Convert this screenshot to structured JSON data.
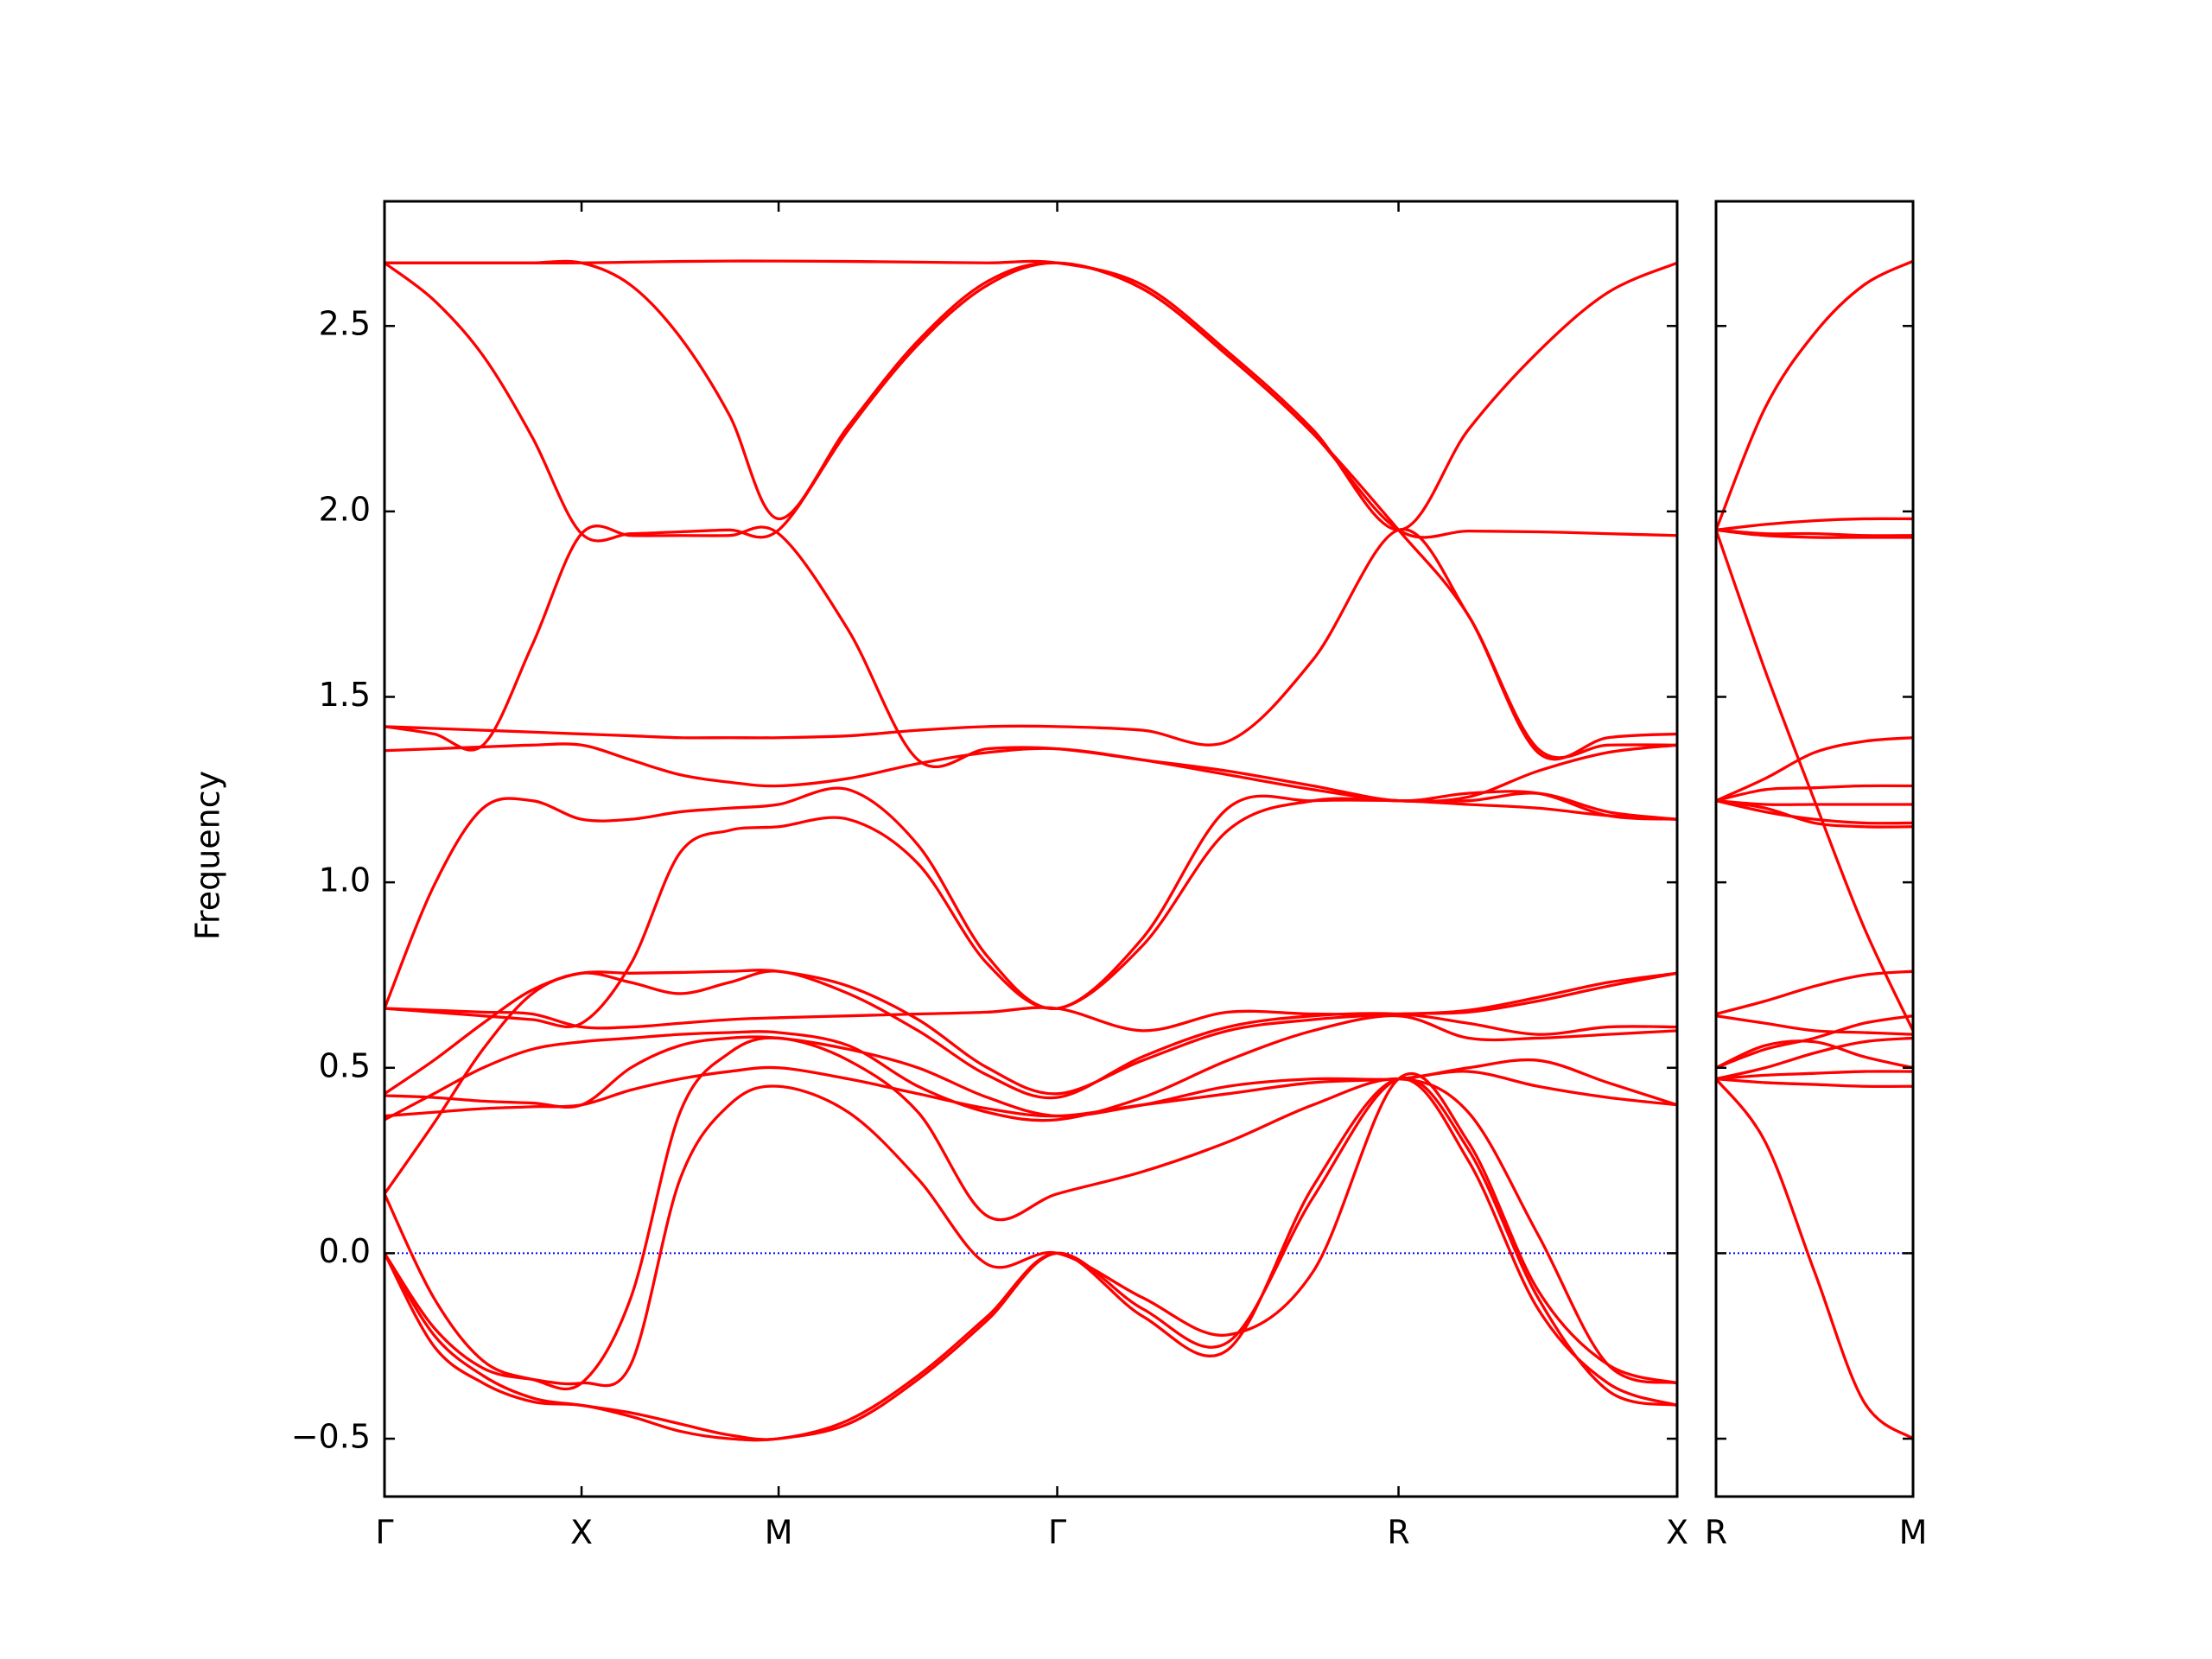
{
  "chart_data": [
    {
      "type": "line",
      "ylabel": "Frequency",
      "color": "red",
      "x": [
        0,
        0.125,
        0.25,
        0.375,
        0.5,
        0.625,
        0.75,
        0.875,
        1.0,
        1.177,
        1.354,
        1.53,
        1.707,
        1.924,
        2.14,
        2.356,
        2.573,
        2.75,
        2.927,
        3.104,
        3.28
      ],
      "xlim": [
        0,
        3.28
      ],
      "xticks": [
        {
          "value": 0,
          "label": "Γ"
        },
        {
          "value": 0.5,
          "label": "X"
        },
        {
          "value": 1.0,
          "label": "M"
        },
        {
          "value": 1.707,
          "label": "Γ"
        },
        {
          "value": 2.573,
          "label": "R"
        },
        {
          "value": 3.28,
          "label": "X"
        }
      ],
      "ylim": [
        -0.656,
        2.836
      ],
      "yticks": [
        {
          "value": -0.5,
          "label": "−0.5"
        },
        {
          "value": 0,
          "label": "0.0"
        },
        0.5,
        {
          "value": 1,
          "label": "1.0"
        },
        1.5,
        {
          "value": 2,
          "label": "2.0"
        },
        2.5
      ],
      "reference_line": {
        "y": 0,
        "color": "blue",
        "style": "dotted"
      },
      "series": [
        {
          "values": [
            2.67,
            2.67,
            2.67,
            2.67,
            2.67,
            2.672,
            2.674,
            2.675,
            2.675,
            2.674,
            2.672,
            2.67,
            2.67,
            2.61,
            2.43,
            2.22,
            1.95,
            2.22,
            2.43,
            2.59,
            2.67
          ]
        },
        {
          "values": [
            2.67,
            2.57,
            2.42,
            2.2,
            1.94,
            1.94,
            1.945,
            1.95,
            1.95,
            2.22,
            2.45,
            2.61,
            2.67,
            2.6,
            2.42,
            2.21,
            1.95,
            1.947,
            1.945,
            1.94,
            1.935
          ]
        },
        {
          "values": [
            2.67,
            2.67,
            2.67,
            2.67,
            2.67,
            2.61,
            2.47,
            2.26,
            1.98,
            2.23,
            2.46,
            2.62,
            2.67,
            2.6,
            2.42,
            2.21,
            1.95,
            1.72,
            1.35,
            1.39,
            1.4
          ]
        },
        {
          "values": [
            1.42,
            1.4,
            1.37,
            1.64,
            1.94,
            1.935,
            1.935,
            1.935,
            1.94,
            1.68,
            1.33,
            1.36,
            1.36,
            1.33,
            1.3,
            1.26,
            1.22,
            1.24,
            1.24,
            1.18,
            1.17
          ]
        },
        {
          "values": [
            1.42,
            1.415,
            1.41,
            1.405,
            1.4,
            1.395,
            1.39,
            1.39,
            1.39,
            1.395,
            1.41,
            1.42,
            1.42,
            1.41,
            1.38,
            1.6,
            1.95,
            1.72,
            1.36,
            1.37,
            1.37
          ]
        },
        {
          "values": [
            1.355,
            1.36,
            1.365,
            1.37,
            1.37,
            1.33,
            1.29,
            1.27,
            1.26,
            1.28,
            1.32,
            1.35,
            1.36,
            1.33,
            1.29,
            1.25,
            1.22,
            1.23,
            1.3,
            1.35,
            1.37
          ]
        },
        {
          "values": [
            0.66,
            0.99,
            1.2,
            1.22,
            1.17,
            1.17,
            1.19,
            1.2,
            1.21,
            1.25,
            1.1,
            0.8,
            0.66,
            0.85,
            1.2,
            1.22,
            1.22,
            1.21,
            1.2,
            1.18,
            1.17
          ]
        },
        {
          "values": [
            0.66,
            0.65,
            0.64,
            0.63,
            0.62,
            0.78,
            1.08,
            1.14,
            1.15,
            1.17,
            1.05,
            0.78,
            0.66,
            0.83,
            1.14,
            1.22,
            1.22,
            1.22,
            1.24,
            1.19,
            1.17
          ]
        },
        {
          "values": [
            0.43,
            0.52,
            0.62,
            0.71,
            0.755,
            0.755,
            0.757,
            0.76,
            0.76,
            0.72,
            0.63,
            0.5,
            0.43,
            0.52,
            0.6,
            0.63,
            0.645,
            0.65,
            0.68,
            0.72,
            0.755
          ]
        },
        {
          "values": [
            0.16,
            0.35,
            0.55,
            0.7,
            0.755,
            0.73,
            0.7,
            0.73,
            0.76,
            0.7,
            0.6,
            0.48,
            0.42,
            0.53,
            0.61,
            0.64,
            0.645,
            0.62,
            0.59,
            0.61,
            0.61
          ]
        },
        {
          "values": [
            0.37,
            0.38,
            0.39,
            0.395,
            0.4,
            0.44,
            0.47,
            0.49,
            0.5,
            0.47,
            0.43,
            0.39,
            0.37,
            0.4,
            0.43,
            0.46,
            0.47,
            0.49,
            0.45,
            0.42,
            0.4
          ]
        },
        {
          "values": [
            0.425,
            0.42,
            0.41,
            0.405,
            0.4,
            0.5,
            0.56,
            0.58,
            0.58,
            0.55,
            0.5,
            0.42,
            0.37,
            0.4,
            0.45,
            0.47,
            0.47,
            0.5,
            0.52,
            0.46,
            0.4
          ]
        },
        {
          "values": [
            0.66,
            0.655,
            0.65,
            0.645,
            0.61,
            0.61,
            0.62,
            0.63,
            0.635,
            0.64,
            0.645,
            0.65,
            0.66,
            0.6,
            0.65,
            0.645,
            0.645,
            0.655,
            0.69,
            0.73,
            0.755
          ]
        },
        {
          "values": [
            0.36,
            0.43,
            0.5,
            0.55,
            0.57,
            0.58,
            0.59,
            0.595,
            0.595,
            0.56,
            0.45,
            0.38,
            0.36,
            0.42,
            0.52,
            0.6,
            0.64,
            0.58,
            0.58,
            0.59,
            0.6
          ]
        },
        {
          "values": [
            0.0,
            -0.22,
            -0.33,
            -0.39,
            -0.41,
            -0.43,
            -0.46,
            -0.49,
            -0.5,
            -0.45,
            -0.33,
            -0.17,
            0.0,
            -0.17,
            -0.26,
            0.18,
            0.47,
            0.25,
            -0.15,
            -0.35,
            -0.41
          ]
        },
        {
          "values": [
            0.16,
            -0.12,
            -0.29,
            -0.34,
            -0.35,
            -0.12,
            0.38,
            0.54,
            0.58,
            0.52,
            0.38,
            0.1,
            0.16,
            0.22,
            0.3,
            0.4,
            0.47,
            0.38,
            0.05,
            -0.3,
            -0.35
          ]
        },
        {
          "values": [
            0.0,
            -0.2,
            -0.31,
            -0.34,
            -0.35,
            -0.3,
            0.2,
            0.4,
            0.45,
            0.38,
            0.2,
            -0.03,
            0.0,
            -0.12,
            -0.22,
            -0.05,
            0.47,
            0.3,
            -0.1,
            -0.3,
            -0.35
          ]
        },
        {
          "values": [
            0.0,
            -0.25,
            -0.35,
            -0.4,
            -0.41,
            -0.44,
            -0.48,
            -0.5,
            -0.5,
            -0.46,
            -0.34,
            -0.18,
            0.0,
            -0.15,
            -0.24,
            0.15,
            0.47,
            0.28,
            -0.12,
            -0.37,
            -0.41
          ]
        }
      ]
    },
    {
      "type": "line",
      "color": "red",
      "x": [
        0,
        0.125,
        0.25,
        0.375,
        0.5
      ],
      "xlim": [
        0,
        0.5
      ],
      "xticks": [
        {
          "value": 0,
          "label": "R"
        },
        {
          "value": 0.5,
          "label": "M"
        }
      ],
      "ylim": [
        -0.656,
        2.836
      ],
      "yticks": [
        -0.5,
        0,
        0.5,
        1,
        1.5,
        2,
        2.5
      ],
      "yticklabels": false,
      "reference_line": {
        "y": 0,
        "color": "blue",
        "style": "dotted"
      },
      "series": [
        {
          "values": [
            1.95,
            2.28,
            2.48,
            2.61,
            2.675
          ]
        },
        {
          "values": [
            1.95,
            1.965,
            1.975,
            1.98,
            1.98
          ]
        },
        {
          "values": [
            1.95,
            1.94,
            1.94,
            1.935,
            1.935
          ]
        },
        {
          "values": [
            1.95,
            1.935,
            1.93,
            1.93,
            1.93
          ]
        },
        {
          "values": [
            1.95,
            1.57,
            1.22,
            0.88,
            0.6
          ]
        },
        {
          "values": [
            1.22,
            1.28,
            1.35,
            1.38,
            1.39
          ]
        },
        {
          "values": [
            1.22,
            1.25,
            1.255,
            1.26,
            1.26
          ]
        },
        {
          "values": [
            1.22,
            1.21,
            1.21,
            1.21,
            1.21
          ]
        },
        {
          "values": [
            1.22,
            1.19,
            1.17,
            1.16,
            1.16
          ]
        },
        {
          "values": [
            1.22,
            1.2,
            1.16,
            1.15,
            1.15
          ]
        },
        {
          "values": [
            0.645,
            0.68,
            0.72,
            0.75,
            0.76
          ]
        },
        {
          "values": [
            0.64,
            0.62,
            0.6,
            0.595,
            0.59
          ]
        },
        {
          "values": [
            0.5,
            0.55,
            0.58,
            0.62,
            0.64
          ]
        },
        {
          "values": [
            0.5,
            0.56,
            0.57,
            0.53,
            0.5
          ]
        },
        {
          "values": [
            0.47,
            0.5,
            0.54,
            0.57,
            0.58
          ]
        },
        {
          "values": [
            0.47,
            0.48,
            0.485,
            0.49,
            0.49
          ]
        },
        {
          "values": [
            0.47,
            0.46,
            0.455,
            0.45,
            0.45
          ]
        },
        {
          "values": [
            0.47,
            0.3,
            -0.05,
            -0.4,
            -0.5
          ]
        }
      ]
    }
  ]
}
